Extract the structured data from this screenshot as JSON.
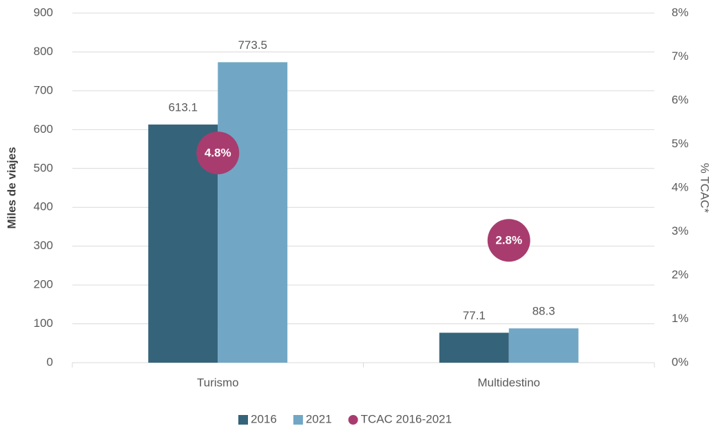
{
  "chart_data": {
    "type": "bar",
    "categories": [
      "Turismo",
      "Multidestino"
    ],
    "series": [
      {
        "name": "2016",
        "color": "#35647a",
        "values": [
          613.1,
          77.1
        ]
      },
      {
        "name": "2021",
        "color": "#71a7c4",
        "values": [
          773.5,
          88.3
        ]
      },
      {
        "name": "TCAC 2016-2021",
        "color": "#a83c6f",
        "type": "scatter",
        "axis": "y2",
        "values": [
          4.8,
          2.8
        ],
        "value_labels": [
          "4.8%",
          "2.8%"
        ]
      }
    ],
    "ylabel": "Miles de viajes",
    "y2label": "% TCAC*",
    "ylim": [
      0,
      900
    ],
    "yticks": [
      0,
      100,
      200,
      300,
      400,
      500,
      600,
      700,
      800,
      900
    ],
    "y2lim": [
      0,
      8
    ],
    "y2ticks": [
      {
        "value": 0,
        "label": "0%"
      },
      {
        "value": 1,
        "label": "1%"
      },
      {
        "value": 2,
        "label": "2%"
      },
      {
        "value": 3,
        "label": "3%"
      },
      {
        "value": 4,
        "label": "4%"
      },
      {
        "value": 5,
        "label": "5%"
      },
      {
        "value": 6,
        "label": "6%"
      },
      {
        "value": 7,
        "label": "7%"
      },
      {
        "value": 8,
        "label": "8%"
      }
    ],
    "grid": true,
    "legend": "bottom"
  }
}
